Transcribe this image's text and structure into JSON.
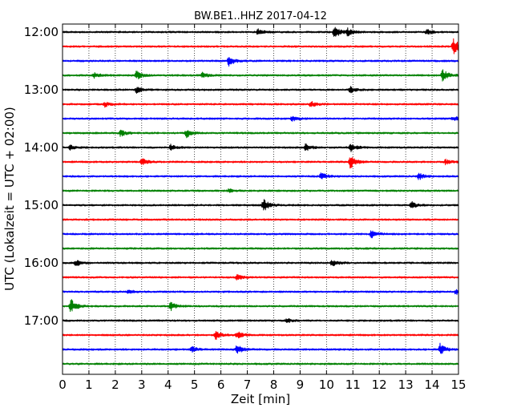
{
  "chart_data": {
    "type": "line",
    "title": "BW.BE1..HHZ 2017-04-12",
    "xlabel": "Zeit  [min]",
    "ylabel": "UTC (Lokalzeit = UTC + 02:00)",
    "xlim": [
      0,
      15
    ],
    "x_ticks": [
      0,
      1,
      2,
      3,
      4,
      5,
      6,
      7,
      8,
      9,
      10,
      11,
      12,
      13,
      14,
      15
    ],
    "x_tick_labels": [
      "0",
      "1",
      "2",
      "3",
      "4",
      "5",
      "6",
      "7",
      "8",
      "9",
      "10",
      "11",
      "12",
      "13",
      "14",
      "15"
    ],
    "x_grid": "dotted vertical lines at each minute",
    "y_tick_labels": [
      "12:00",
      "13:00",
      "14:00",
      "15:00",
      "16:00",
      "17:00"
    ],
    "y_tick_rows": [
      0,
      4,
      8,
      12,
      16,
      20
    ],
    "rows_per_hour": 4,
    "row_minutes": 15,
    "row_colors": [
      "#000000",
      "#ff0000",
      "#0000ff",
      "#008000"
    ],
    "series": [
      {
        "start": "12:00",
        "events": [
          {
            "t": 7.4,
            "amp": 0.35
          },
          {
            "t": 10.3,
            "amp": 0.8
          },
          {
            "t": 10.8,
            "amp": 0.4
          },
          {
            "t": 13.8,
            "amp": 0.35
          }
        ]
      },
      {
        "start": "12:15",
        "events": [
          {
            "t": 14.8,
            "amp": 1.1
          }
        ]
      },
      {
        "start": "12:30",
        "events": [
          {
            "t": 6.3,
            "amp": 0.7
          }
        ]
      },
      {
        "start": "12:45",
        "events": [
          {
            "t": 1.2,
            "amp": 0.3
          },
          {
            "t": 2.8,
            "amp": 0.55
          },
          {
            "t": 5.3,
            "amp": 0.3
          },
          {
            "t": 14.4,
            "amp": 0.75
          }
        ]
      },
      {
        "start": "13:00",
        "events": [
          {
            "t": 2.8,
            "amp": 0.35
          },
          {
            "t": 10.9,
            "amp": 0.35
          }
        ]
      },
      {
        "start": "13:15",
        "events": [
          {
            "t": 1.6,
            "amp": 0.3
          },
          {
            "t": 9.4,
            "amp": 0.35
          }
        ]
      },
      {
        "start": "13:30",
        "events": [
          {
            "t": 8.7,
            "amp": 0.3
          },
          {
            "t": 14.8,
            "amp": 0.25
          }
        ]
      },
      {
        "start": "13:45",
        "events": [
          {
            "t": 2.2,
            "amp": 0.4
          },
          {
            "t": 4.7,
            "amp": 0.5
          }
        ]
      },
      {
        "start": "14:00",
        "events": [
          {
            "t": 0.3,
            "amp": 0.3
          },
          {
            "t": 4.1,
            "amp": 0.35
          },
          {
            "t": 9.2,
            "amp": 0.45
          },
          {
            "t": 10.9,
            "amp": 0.55
          }
        ]
      },
      {
        "start": "14:15",
        "events": [
          {
            "t": 3.0,
            "amp": 0.4
          },
          {
            "t": 10.9,
            "amp": 0.8
          },
          {
            "t": 14.5,
            "amp": 0.3
          }
        ]
      },
      {
        "start": "14:30",
        "events": [
          {
            "t": 9.8,
            "amp": 0.45
          },
          {
            "t": 13.5,
            "amp": 0.4
          }
        ]
      },
      {
        "start": "14:45",
        "events": [
          {
            "t": 6.3,
            "amp": 0.2
          }
        ]
      },
      {
        "start": "15:00",
        "events": [
          {
            "t": 7.6,
            "amp": 0.8
          },
          {
            "t": 13.2,
            "amp": 0.5
          }
        ]
      },
      {
        "start": "15:15",
        "events": []
      },
      {
        "start": "15:30",
        "events": [
          {
            "t": 11.7,
            "amp": 0.45
          }
        ]
      },
      {
        "start": "15:45",
        "events": []
      },
      {
        "start": "16:00",
        "events": [
          {
            "t": 0.5,
            "amp": 0.4
          },
          {
            "t": 10.2,
            "amp": 0.45
          }
        ]
      },
      {
        "start": "16:15",
        "events": [
          {
            "t": 6.6,
            "amp": 0.3
          }
        ]
      },
      {
        "start": "16:30",
        "events": [
          {
            "t": 2.5,
            "amp": 0.2
          },
          {
            "t": 14.9,
            "amp": 0.3
          }
        ]
      },
      {
        "start": "16:45",
        "events": [
          {
            "t": 0.3,
            "amp": 1.0
          },
          {
            "t": 4.1,
            "amp": 0.5
          }
        ]
      },
      {
        "start": "17:00",
        "events": [
          {
            "t": 8.5,
            "amp": 0.25
          }
        ]
      },
      {
        "start": "17:15",
        "events": [
          {
            "t": 5.8,
            "amp": 0.55
          },
          {
            "t": 6.6,
            "amp": 0.5
          }
        ]
      },
      {
        "start": "17:30",
        "events": [
          {
            "t": 4.9,
            "amp": 0.35
          },
          {
            "t": 6.6,
            "amp": 0.55
          },
          {
            "t": 14.3,
            "amp": 0.7
          }
        ]
      },
      {
        "start": "17:45",
        "events": []
      }
    ]
  }
}
